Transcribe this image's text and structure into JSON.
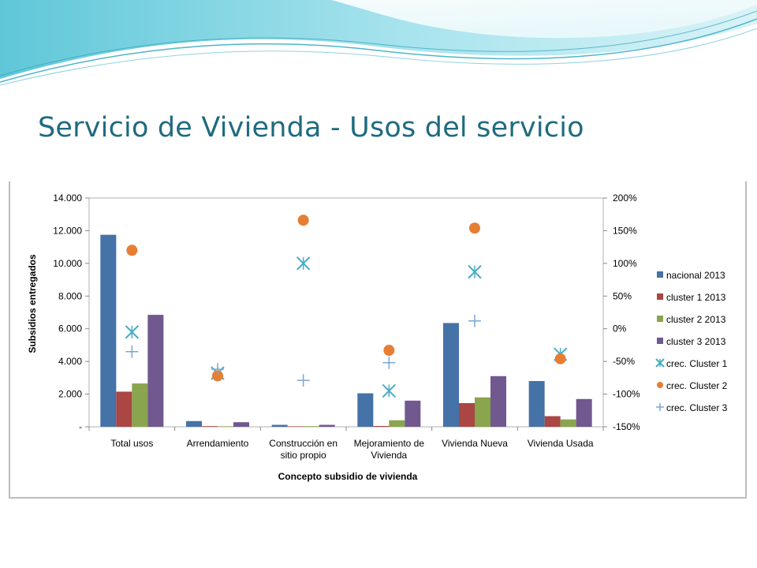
{
  "slide": {
    "title": "Servicio de Vivienda - Usos del servicio"
  },
  "colors": {
    "nacional": "#4572a7",
    "cluster1": "#aa4643",
    "cluster2": "#89a54e",
    "cluster3": "#71588f",
    "crec1": "#4aacc5",
    "crec2": "#e67e33",
    "crec3": "#7ba7d4",
    "title": "#1f6b80"
  },
  "chart_data": {
    "type": "bar",
    "xlabel": "Concepto subsidio de vivienda",
    "ylabel": "Subsidios entregados",
    "ylim": [
      0,
      14000
    ],
    "y2lim": [
      -150,
      200
    ],
    "yticks": [
      {
        "value": 0,
        "label": "-"
      },
      {
        "value": 2000,
        "label": "2.000"
      },
      {
        "value": 4000,
        "label": "4.000"
      },
      {
        "value": 6000,
        "label": "6.000"
      },
      {
        "value": 8000,
        "label": "8.000"
      },
      {
        "value": 10000,
        "label": "10.000"
      },
      {
        "value": 12000,
        "label": "12.000"
      },
      {
        "value": 14000,
        "label": "14.000"
      }
    ],
    "y2ticks": [
      {
        "value": -150,
        "label": "-150%"
      },
      {
        "value": -100,
        "label": "-100%"
      },
      {
        "value": -50,
        "label": "-50%"
      },
      {
        "value": 0,
        "label": "0%"
      },
      {
        "value": 50,
        "label": "50%"
      },
      {
        "value": 100,
        "label": "100%"
      },
      {
        "value": 150,
        "label": "150%"
      },
      {
        "value": 200,
        "label": "200%"
      }
    ],
    "categories": [
      [
        "Total usos"
      ],
      [
        "Arrendamiento"
      ],
      [
        "Construcción en",
        "sitio propio"
      ],
      [
        "Mejoramiento de",
        "Vivienda"
      ],
      [
        "Vivienda Nueva"
      ],
      [
        "Vivienda Usada"
      ]
    ],
    "grid": false,
    "legend_position": "right",
    "series": [
      {
        "name": "nacional 2013",
        "kind": "bar",
        "axis": "left",
        "color": "#4572a7",
        "values": [
          11750,
          350,
          120,
          2050,
          6350,
          2800
        ]
      },
      {
        "name": "cluster 1 2013",
        "kind": "bar",
        "axis": "left",
        "color": "#aa4643",
        "values": [
          2150,
          40,
          30,
          50,
          1450,
          650
        ]
      },
      {
        "name": "cluster 2 2013",
        "kind": "bar",
        "axis": "left",
        "color": "#89a54e",
        "values": [
          2650,
          30,
          40,
          400,
          1800,
          450
        ]
      },
      {
        "name": "cluster 3 2013",
        "kind": "bar",
        "axis": "left",
        "color": "#71588f",
        "values": [
          6850,
          280,
          120,
          1600,
          3100,
          1700
        ]
      },
      {
        "name": "crec. Cluster 1",
        "kind": "marker",
        "marker": "asterisk",
        "axis": "right",
        "color": "#4aacc5",
        "values": [
          -5,
          -68,
          100,
          -95,
          87,
          -39
        ]
      },
      {
        "name": "crec. Cluster 2",
        "kind": "marker",
        "marker": "circle",
        "axis": "right",
        "color": "#e67e33",
        "values": [
          120,
          -72,
          166,
          -33,
          154,
          -46
        ]
      },
      {
        "name": "crec. Cluster 3",
        "kind": "marker",
        "marker": "plus",
        "axis": "right",
        "color": "#7ba7d4",
        "values": [
          -35,
          -62,
          -79,
          -52,
          12,
          null
        ]
      }
    ]
  }
}
